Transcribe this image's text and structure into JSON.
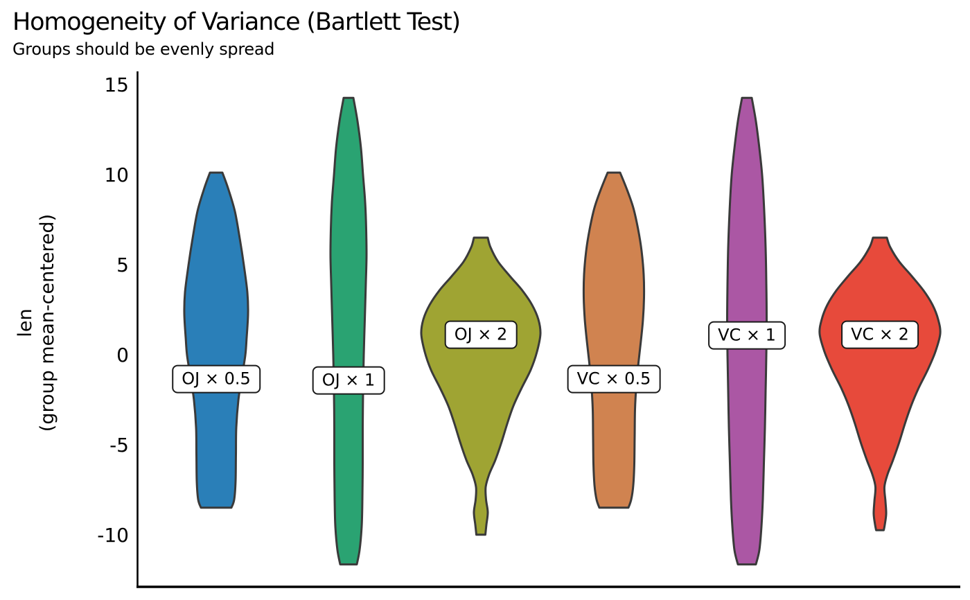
{
  "title": "Homogeneity of Variance (Bartlett Test)",
  "subtitle": "Groups should be evenly spread",
  "chart_data": {
    "type": "violin",
    "title": "Homogeneity of Variance (Bartlett Test)",
    "subtitle": "Groups should be evenly spread",
    "ylabel": [
      "len",
      "(group mean-centered)"
    ],
    "yticks": [
      15,
      10,
      5,
      0,
      -5,
      -10
    ],
    "ylim": [
      -12.8,
      15.8
    ],
    "grid": false,
    "legend_position": "none",
    "axis_color": "#000000",
    "violin_outline_color": "#3a3a3a",
    "groups": [
      {
        "label": "OJ × 0.5",
        "color": "#2a7fb8",
        "label_y": -1.3,
        "min": -8.45,
        "max": 10.15,
        "profile": [
          [
            10.15,
            9
          ],
          [
            9.3,
            17
          ],
          [
            8,
            27
          ],
          [
            6.5,
            34
          ],
          [
            5,
            40
          ],
          [
            3.5,
            45
          ],
          [
            2.3,
            46
          ],
          [
            1,
            44
          ],
          [
            0,
            42
          ],
          [
            -1.2,
            37
          ],
          [
            -2.5,
            32
          ],
          [
            -4,
            29
          ],
          [
            -5.5,
            28.5
          ],
          [
            -7,
            28
          ],
          [
            -8.0,
            26
          ],
          [
            -8.45,
            22
          ]
        ]
      },
      {
        "label": "OJ × 1",
        "color": "#2aa372",
        "label_y": -1.4,
        "min": -11.6,
        "max": 14.3,
        "profile": [
          [
            14.3,
            7
          ],
          [
            13,
            13
          ],
          [
            11.5,
            18
          ],
          [
            10,
            21
          ],
          [
            8.5,
            24
          ],
          [
            7,
            25.5
          ],
          [
            5.5,
            26
          ],
          [
            4,
            25
          ],
          [
            2,
            23.5
          ],
          [
            0,
            22
          ],
          [
            -2,
            21
          ],
          [
            -4,
            20.5
          ],
          [
            -6,
            20.5
          ],
          [
            -8,
            20
          ],
          [
            -9.5,
            19
          ],
          [
            -10.8,
            16
          ],
          [
            -11.6,
            12
          ]
        ]
      },
      {
        "label": "OJ × 2",
        "color": "#9fa433",
        "label_y": 1.15,
        "min": -9.95,
        "max": 6.54,
        "profile": [
          [
            6.54,
            10
          ],
          [
            6.0,
            14
          ],
          [
            5.2,
            25
          ],
          [
            4.4,
            42
          ],
          [
            3.6,
            60
          ],
          [
            2.8,
            74
          ],
          [
            2.0,
            83
          ],
          [
            1.2,
            86
          ],
          [
            0.2,
            81
          ],
          [
            -0.8,
            72
          ],
          [
            -1.8,
            59
          ],
          [
            -2.8,
            47
          ],
          [
            -3.8,
            38
          ],
          [
            -4.8,
            30
          ],
          [
            -5.8,
            21
          ],
          [
            -6.6,
            12
          ],
          [
            -7.3,
            7
          ],
          [
            -8.0,
            7.5
          ],
          [
            -8.7,
            10
          ],
          [
            -9.4,
            8
          ],
          [
            -9.95,
            6.5
          ]
        ]
      },
      {
        "label": "VC × 0.5",
        "color": "#d08350",
        "label_y": -1.3,
        "min": -8.45,
        "max": 10.15,
        "profile": [
          [
            10.15,
            9
          ],
          [
            9.2,
            19
          ],
          [
            8.2,
            28
          ],
          [
            7,
            35
          ],
          [
            5.8,
            40
          ],
          [
            4.5,
            43
          ],
          [
            3.2,
            43.5
          ],
          [
            2,
            42
          ],
          [
            0.8,
            39
          ],
          [
            -0.4,
            35.5
          ],
          [
            -1.6,
            32.5
          ],
          [
            -3,
            30.5
          ],
          [
            -4.5,
            30
          ],
          [
            -6,
            29.5
          ],
          [
            -7.2,
            28
          ],
          [
            -8.0,
            25
          ],
          [
            -8.45,
            21
          ]
        ]
      },
      {
        "label": "VC × 1",
        "color": "#ab57a4",
        "label_y": 1.1,
        "min": -11.6,
        "max": 14.3,
        "profile": [
          [
            14.3,
            7
          ],
          [
            13,
            13
          ],
          [
            11.5,
            18
          ],
          [
            10,
            22
          ],
          [
            8,
            25
          ],
          [
            6,
            27
          ],
          [
            4,
            28
          ],
          [
            2,
            28.5
          ],
          [
            0,
            28
          ],
          [
            -2,
            27
          ],
          [
            -4,
            26
          ],
          [
            -6,
            24.5
          ],
          [
            -8,
            23
          ],
          [
            -9.5,
            21
          ],
          [
            -10.8,
            18
          ],
          [
            -11.6,
            13
          ]
        ]
      },
      {
        "label": "VC × 2",
        "color": "#e74a3b",
        "label_y": 1.15,
        "min": -9.7,
        "max": 6.54,
        "profile": [
          [
            6.54,
            10
          ],
          [
            6.0,
            15
          ],
          [
            5.2,
            28
          ],
          [
            4.4,
            46
          ],
          [
            3.6,
            63
          ],
          [
            2.8,
            76
          ],
          [
            2.0,
            84
          ],
          [
            1.2,
            87
          ],
          [
            0.2,
            80
          ],
          [
            -0.8,
            69
          ],
          [
            -1.8,
            56
          ],
          [
            -2.8,
            45
          ],
          [
            -3.8,
            36
          ],
          [
            -4.8,
            28
          ],
          [
            -5.8,
            19
          ],
          [
            -6.6,
            11
          ],
          [
            -7.3,
            6.5
          ],
          [
            -8.1,
            8
          ],
          [
            -8.8,
            9
          ],
          [
            -9.4,
            7
          ],
          [
            -9.7,
            5.5
          ]
        ]
      }
    ]
  }
}
